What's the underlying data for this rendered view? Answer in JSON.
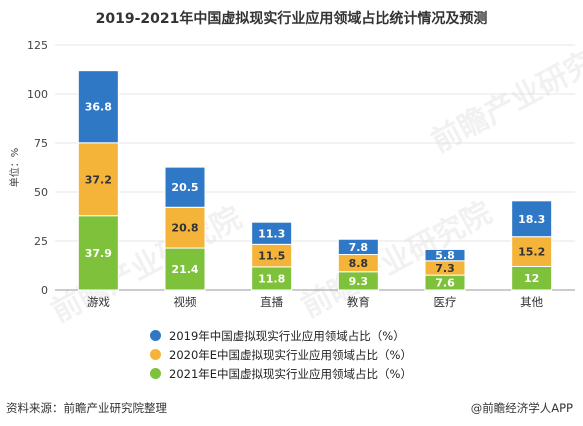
{
  "title": "2019-2021年中国虚拟现实行业应用领域占比统计情况及预测",
  "ylabel": "单位：%",
  "source": "资料来源：前瞻产业研究院整理",
  "brand": "@前瞻经济学人APP",
  "watermark_text": "前瞻产业研究院",
  "chart_data": {
    "type": "bar",
    "stacked": true,
    "title": "2019-2021年中国虚拟现实行业应用领域占比统计情况及预测",
    "ylabel": "单位：%",
    "categories": [
      "游戏",
      "视频",
      "直播",
      "教育",
      "医疗",
      "其他"
    ],
    "series": [
      {
        "name": "2021年E中国虚拟现实行业应用领域占比（%）",
        "color": "#7ec13b",
        "values": [
          37.9,
          21.4,
          11.8,
          9.3,
          7.6,
          12
        ],
        "labels": [
          "37.9",
          "21.4",
          "11.8",
          "9.3",
          "7.6",
          "12"
        ]
      },
      {
        "name": "2020年E中国虚拟现实行业应用领域占比（%）",
        "color": "#f4b43a",
        "values": [
          37.2,
          20.8,
          11.5,
          8.8,
          7.3,
          15.2
        ],
        "labels": [
          "37.2",
          "20.8",
          "11.5",
          "8.8",
          "7.3",
          "15.2"
        ]
      },
      {
        "name": "2019年中国虚拟现实行业应用领域占比（%）",
        "color": "#2e78c6",
        "values": [
          36.8,
          20.5,
          11.3,
          7.8,
          5.8,
          18.3
        ],
        "labels": [
          "36.8",
          "20.5",
          "11.3",
          "7.8",
          "5.8",
          "18.3"
        ]
      }
    ],
    "legend_order": [
      2,
      1,
      0
    ],
    "ylim": [
      0,
      125
    ],
    "yticks": [
      0,
      25,
      50,
      75,
      100,
      125
    ],
    "grid": true,
    "legend_position": "bottom"
  }
}
